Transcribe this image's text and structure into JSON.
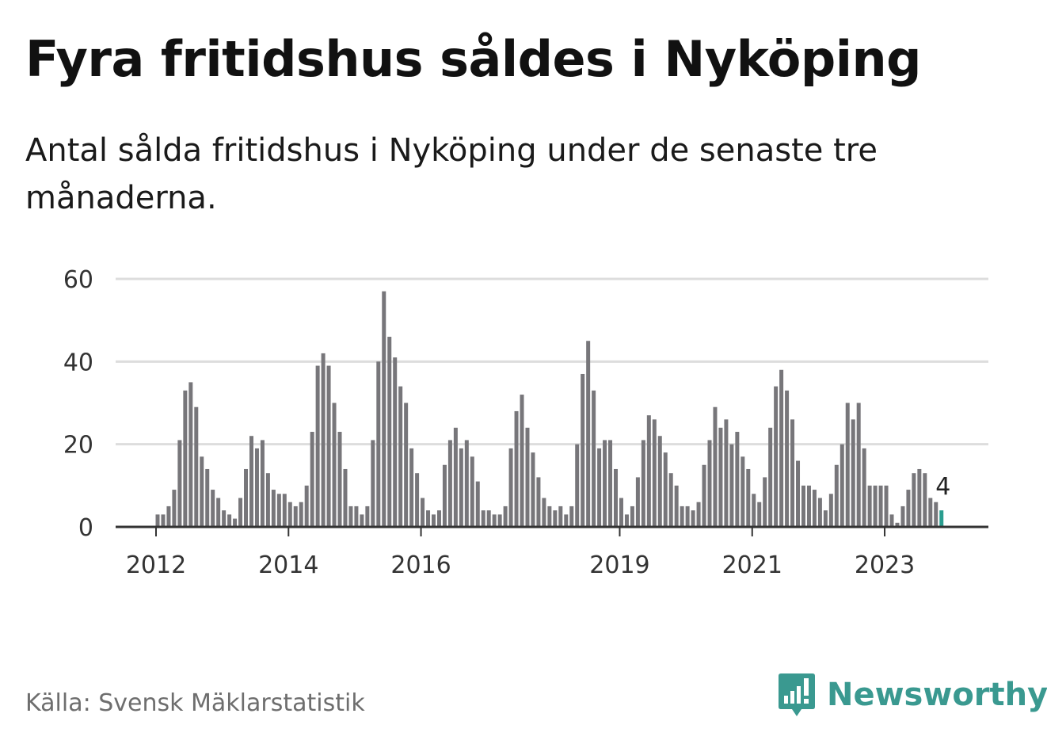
{
  "title": "Fyra fritidshus såldes i Nyköping",
  "subtitle": "Antal sålda fritidshus i Nyköping under de senaste tre månaderna.",
  "source": "Källa: Svensk Mäklarstatistik",
  "brand": {
    "name": "Newsworthy",
    "color": "#3a9990",
    "icon": "bar-chart-speech-bubble-icon"
  },
  "chart_data": {
    "type": "bar",
    "ylim": [
      0,
      60
    ],
    "yticks": [
      0,
      20,
      40,
      60
    ],
    "grid": true,
    "bar_color": "#77767a",
    "highlight_color": "#2a9d8f",
    "start": "2012-01",
    "values": [
      3,
      3,
      5,
      9,
      21,
      33,
      35,
      29,
      17,
      14,
      9,
      7,
      4,
      3,
      2,
      7,
      14,
      22,
      19,
      21,
      13,
      9,
      8,
      8,
      6,
      5,
      6,
      10,
      23,
      39,
      42,
      39,
      30,
      23,
      14,
      5,
      5,
      3,
      5,
      21,
      40,
      57,
      46,
      41,
      34,
      30,
      19,
      13,
      7,
      4,
      3,
      4,
      15,
      21,
      24,
      19,
      21,
      17,
      11,
      4,
      4,
      3,
      3,
      5,
      19,
      28,
      32,
      24,
      18,
      12,
      7,
      5,
      4,
      5,
      3,
      5,
      20,
      37,
      45,
      33,
      19,
      21,
      21,
      14,
      7,
      3,
      5,
      12,
      21,
      27,
      26,
      22,
      18,
      13,
      10,
      5,
      5,
      4,
      6,
      15,
      21,
      29,
      24,
      26,
      20,
      23,
      17,
      14,
      8,
      6,
      12,
      24,
      34,
      38,
      33,
      26,
      16,
      10,
      10,
      9,
      7,
      4,
      8,
      15,
      20,
      30,
      26,
      30,
      19,
      10,
      10,
      10,
      10,
      3,
      1,
      5,
      9,
      13,
      14,
      13,
      7,
      6,
      4
    ],
    "xticks": [
      {
        "label": "2012",
        "index": 0
      },
      {
        "label": "2014",
        "index": 24
      },
      {
        "label": "2016",
        "index": 48
      },
      {
        "label": "2019",
        "index": 84
      },
      {
        "label": "2021",
        "index": 108
      },
      {
        "label": "2023",
        "index": 132
      }
    ],
    "last_value_label": "4"
  }
}
